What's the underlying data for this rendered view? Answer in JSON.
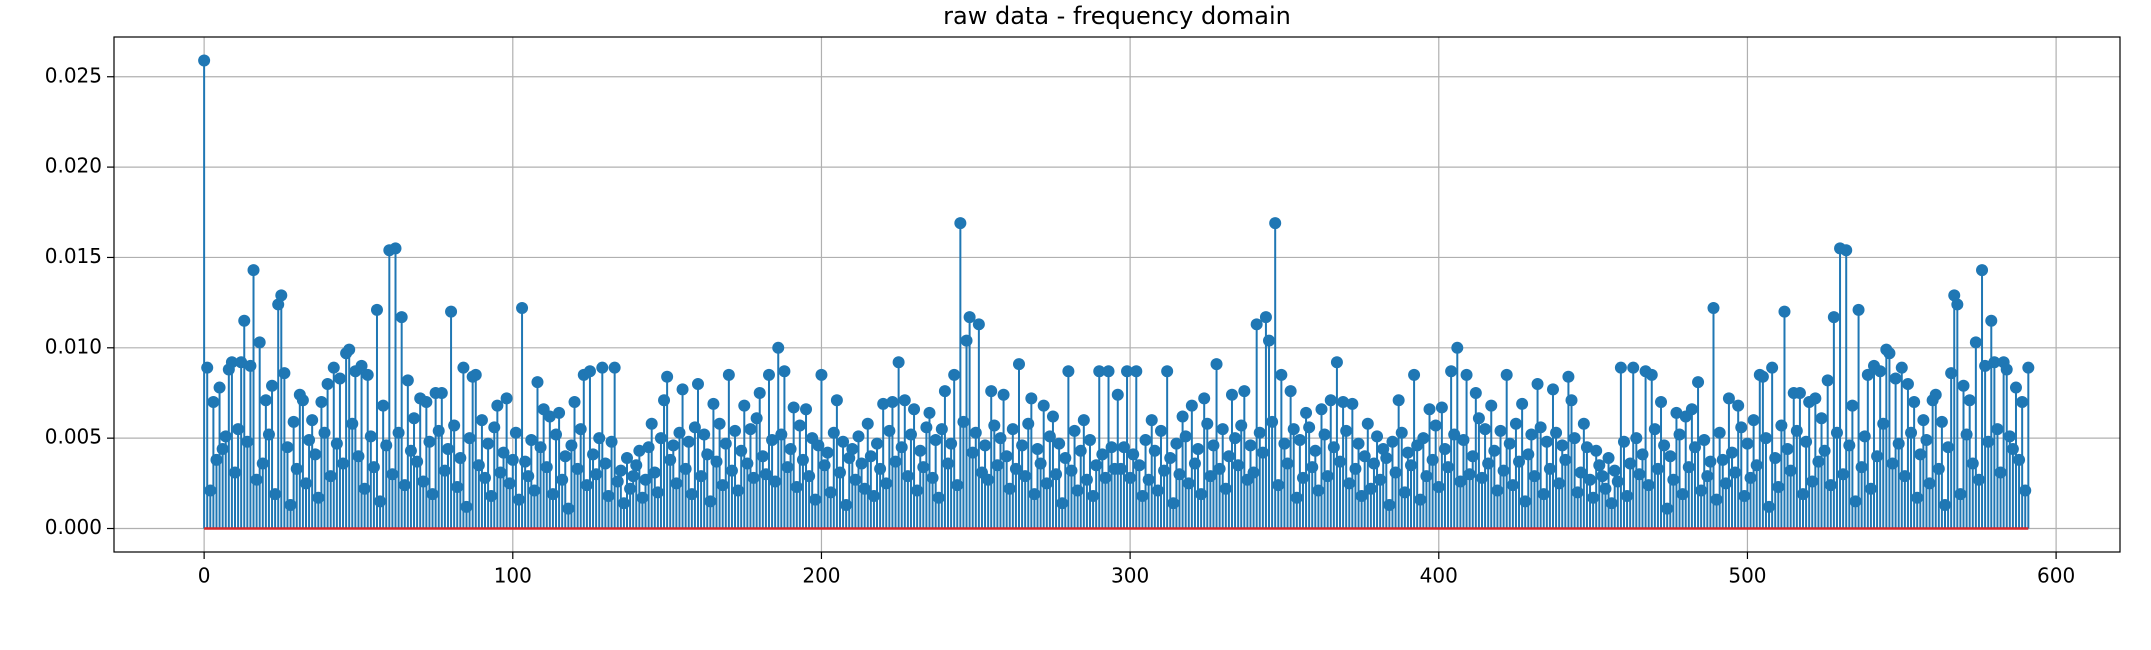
{
  "chart_data": {
    "type": "stem",
    "title": "raw data - frequency domain",
    "color": "#1f77b4",
    "baseline_color": "#d62728",
    "grid": true,
    "xlim": [
      -29.2,
      620.7
    ],
    "xticks": [
      0,
      100,
      200,
      300,
      400,
      500,
      600
    ],
    "ylim": [
      -0.0013,
      0.0272
    ],
    "yticks": [
      {
        "value": 0,
        "label": "0.000"
      },
      {
        "value": 0.005,
        "label": "0.005"
      },
      {
        "value": 0.01,
        "label": "0.010"
      },
      {
        "value": 0.015,
        "label": "0.015"
      },
      {
        "value": 0.02,
        "label": "0.020"
      },
      {
        "value": 0.025,
        "label": "0.025"
      }
    ],
    "values": [
      0.0259,
      0.0089,
      0.0021,
      0.007,
      0.0038,
      0.0078,
      0.0044,
      0.0051,
      0.0088,
      0.0092,
      0.0031,
      0.0055,
      0.0092,
      0.0115,
      0.0048,
      0.009,
      0.0143,
      0.0027,
      0.0103,
      0.0036,
      0.0071,
      0.0052,
      0.0079,
      0.0019,
      0.0124,
      0.0129,
      0.0086,
      0.0045,
      0.0013,
      0.0059,
      0.0033,
      0.0074,
      0.0071,
      0.0025,
      0.0049,
      0.006,
      0.0041,
      0.0017,
      0.007,
      0.0053,
      0.008,
      0.0029,
      0.0089,
      0.0047,
      0.0083,
      0.0036,
      0.0097,
      0.0099,
      0.0058,
      0.0087,
      0.004,
      0.009,
      0.0022,
      0.0085,
      0.0051,
      0.0034,
      0.0121,
      0.0015,
      0.0068,
      0.0046,
      0.0154,
      0.003,
      0.0155,
      0.0053,
      0.0117,
      0.0024,
      0.0082,
      0.0043,
      0.0061,
      0.0037,
      0.0072,
      0.0026,
      0.007,
      0.0048,
      0.0019,
      0.0075,
      0.0054,
      0.0075,
      0.0032,
      0.0044,
      0.012,
      0.0057,
      0.0023,
      0.0039,
      0.0089,
      0.0012,
      0.005,
      0.0084,
      0.0085,
      0.0035,
      0.006,
      0.0028,
      0.0047,
      0.0018,
      0.0056,
      0.0068,
      0.0031,
      0.0042,
      0.0072,
      0.0025,
      0.0038,
      0.0053,
      0.0016,
      0.0122,
      0.0037,
      0.0029,
      0.0049,
      0.0021,
      0.0081,
      0.0045,
      0.0066,
      0.0034,
      0.0062,
      0.0019,
      0.0052,
      0.0064,
      0.0027,
      0.004,
      0.0011,
      0.0046,
      0.007,
      0.0033,
      0.0055,
      0.0085,
      0.0024,
      0.0087,
      0.0041,
      0.003,
      0.005,
      0.0089,
      0.0036,
      0.0018,
      0.0048,
      0.0089,
      0.0026,
      0.0032,
      0.0014,
      0.0039,
      0.0022,
      0.0029,
      0.0035,
      0.0043,
      0.0017,
      0.0027,
      0.0045,
      0.0058,
      0.0031,
      0.002,
      0.005,
      0.0071,
      0.0084,
      0.0038,
      0.0046,
      0.0025,
      0.0053,
      0.0077,
      0.0033,
      0.0048,
      0.0019,
      0.0056,
      0.008,
      0.0029,
      0.0052,
      0.0041,
      0.0015,
      0.0069,
      0.0037,
      0.0058,
      0.0024,
      0.0047,
      0.0085,
      0.0032,
      0.0054,
      0.0021,
      0.0043,
      0.0068,
      0.0036,
      0.0055,
      0.0028,
      0.0061,
      0.0075,
      0.004,
      0.003,
      0.0085,
      0.0049,
      0.0026,
      0.01,
      0.0052,
      0.0087,
      0.0034,
      0.0044,
      0.0067,
      0.0023,
      0.0057,
      0.0038,
      0.0066,
      0.0029,
      0.005,
      0.0016,
      0.0046,
      0.0085,
      0.0035,
      0.0042,
      0.002,
      0.0053,
      0.0071,
      0.0031,
      0.0048,
      0.0013,
      0.0039,
      0.0044,
      0.0027,
      0.0051,
      0.0036,
      0.0022,
      0.0058,
      0.004,
      0.0018,
      0.0047,
      0.0033,
      0.0069,
      0.0025,
      0.0054,
      0.007,
      0.0037,
      0.0092,
      0.0045,
      0.0071,
      0.0029,
      0.0052,
      0.0066,
      0.0021,
      0.0043,
      0.0034,
      0.0056,
      0.0064,
      0.0028,
      0.0049,
      0.0017,
      0.0055,
      0.0076,
      0.0036,
      0.0047,
      0.0085,
      0.0024,
      0.0169,
      0.0059,
      0.0104,
      0.0117,
      0.0042,
      0.0053,
      0.0113,
      0.0031,
      0.0046,
      0.0027,
      0.0076,
      0.0057,
      0.0035,
      0.005,
      0.0074,
      0.004,
      0.0022,
      0.0055,
      0.0033,
      0.0091,
      0.0046,
      0.0029,
      0.0058,
      0.0072,
      0.0019,
      0.0044,
      0.0036,
      0.0068,
      0.0025,
      0.0051,
      0.0062,
      0.003,
      0.0047,
      0.0014,
      0.0039,
      0.0087,
      0.0032,
      0.0054,
      0.0021,
      0.0043,
      0.006,
      0.0027,
      0.0049,
      0.0018,
      0.0035,
      0.0087,
      0.0041,
      0.0028,
      0.0087,
      0.0045,
      0.0033,
      0.0074,
      0.0033,
      0.0045,
      0.0087,
      0.0028,
      0.0041,
      0.0087,
      0.0035,
      0.0018,
      0.0049,
      0.0027,
      0.006,
      0.0043,
      0.0021,
      0.0054,
      0.0032,
      0.0087,
      0.0039,
      0.0014,
      0.0047,
      0.003,
      0.0062,
      0.0051,
      0.0025,
      0.0068,
      0.0036,
      0.0044,
      0.0019,
      0.0072,
      0.0058,
      0.0029,
      0.0046,
      0.0091,
      0.0033,
      0.0055,
      0.0022,
      0.004,
      0.0074,
      0.005,
      0.0035,
      0.0057,
      0.0076,
      0.0027,
      0.0046,
      0.0031,
      0.0113,
      0.0053,
      0.0042,
      0.0117,
      0.0104,
      0.0059,
      0.0169,
      0.0024,
      0.0085,
      0.0047,
      0.0036,
      0.0076,
      0.0055,
      0.0017,
      0.0049,
      0.0028,
      0.0064,
      0.0056,
      0.0034,
      0.0043,
      0.0021,
      0.0066,
      0.0052,
      0.0029,
      0.0071,
      0.0045,
      0.0092,
      0.0037,
      0.007,
      0.0054,
      0.0025,
      0.0069,
      0.0033,
      0.0047,
      0.0018,
      0.004,
      0.0058,
      0.0022,
      0.0036,
      0.0051,
      0.0027,
      0.0044,
      0.0039,
      0.0013,
      0.0048,
      0.0031,
      0.0071,
      0.0053,
      0.002,
      0.0042,
      0.0035,
      0.0085,
      0.0046,
      0.0016,
      0.005,
      0.0029,
      0.0066,
      0.0038,
      0.0057,
      0.0023,
      0.0067,
      0.0044,
      0.0034,
      0.0087,
      0.0052,
      0.01,
      0.0026,
      0.0049,
      0.0085,
      0.003,
      0.004,
      0.0075,
      0.0061,
      0.0028,
      0.0055,
      0.0036,
      0.0068,
      0.0043,
      0.0021,
      0.0054,
      0.0032,
      0.0085,
      0.0047,
      0.0024,
      0.0058,
      0.0037,
      0.0069,
      0.0015,
      0.0041,
      0.0052,
      0.0029,
      0.008,
      0.0056,
      0.0019,
      0.0048,
      0.0033,
      0.0077,
      0.0053,
      0.0025,
      0.0046,
      0.0038,
      0.0084,
      0.0071,
      0.005,
      0.002,
      0.0031,
      0.0058,
      0.0045,
      0.0027,
      0.0017,
      0.0043,
      0.0035,
      0.0029,
      0.0022,
      0.0039,
      0.0014,
      0.0032,
      0.0026,
      0.0089,
      0.0048,
      0.0018,
      0.0036,
      0.0089,
      0.005,
      0.003,
      0.0041,
      0.0087,
      0.0024,
      0.0085,
      0.0055,
      0.0033,
      0.007,
      0.0046,
      0.0011,
      0.004,
      0.0027,
      0.0064,
      0.0052,
      0.0019,
      0.0062,
      0.0034,
      0.0066,
      0.0045,
      0.0081,
      0.0021,
      0.0049,
      0.0029,
      0.0037,
      0.0122,
      0.0016,
      0.0053,
      0.0038,
      0.0025,
      0.0072,
      0.0042,
      0.0031,
      0.0068,
      0.0056,
      0.0018,
      0.0047,
      0.0028,
      0.006,
      0.0035,
      0.0085,
      0.0084,
      0.005,
      0.0012,
      0.0089,
      0.0039,
      0.0023,
      0.0057,
      0.012,
      0.0044,
      0.0032,
      0.0075,
      0.0054,
      0.0075,
      0.0019,
      0.0048,
      0.007,
      0.0026,
      0.0072,
      0.0037,
      0.0061,
      0.0043,
      0.0082,
      0.0024,
      0.0117,
      0.0053,
      0.0155,
      0.003,
      0.0154,
      0.0046,
      0.0068,
      0.0015,
      0.0121,
      0.0034,
      0.0051,
      0.0085,
      0.0022,
      0.009,
      0.004,
      0.0087,
      0.0058,
      0.0099,
      0.0097,
      0.0036,
      0.0083,
      0.0047,
      0.0089,
      0.0029,
      0.008,
      0.0053,
      0.007,
      0.0017,
      0.0041,
      0.006,
      0.0049,
      0.0025,
      0.0071,
      0.0074,
      0.0033,
      0.0059,
      0.0013,
      0.0045,
      0.0086,
      0.0129,
      0.0124,
      0.0019,
      0.0079,
      0.0052,
      0.0071,
      0.0036,
      0.0103,
      0.0027,
      0.0143,
      0.009,
      0.0048,
      0.0115,
      0.0092,
      0.0055,
      0.0031,
      0.0092,
      0.0088,
      0.0051,
      0.0044,
      0.0078,
      0.0038,
      0.007,
      0.0021,
      0.0089
    ]
  }
}
